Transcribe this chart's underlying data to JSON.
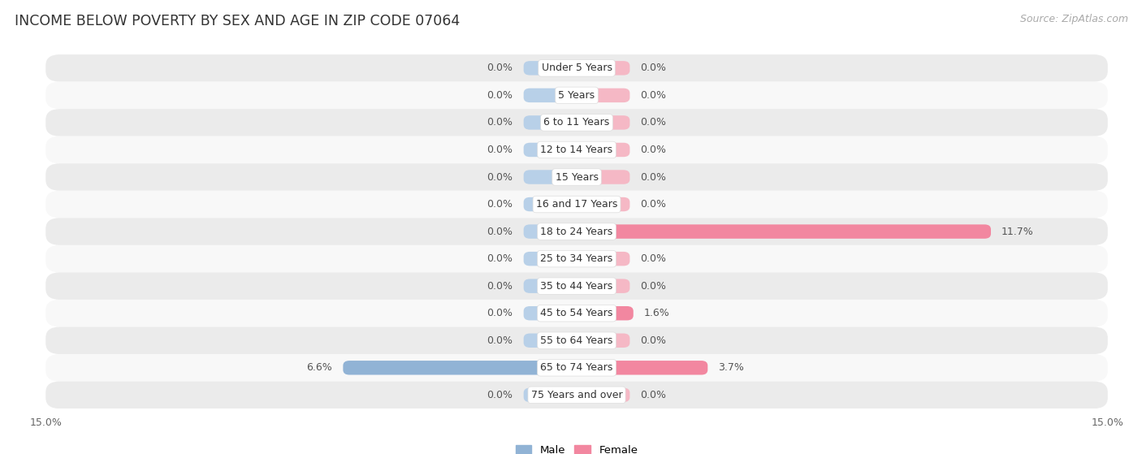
{
  "title": "INCOME BELOW POVERTY BY SEX AND AGE IN ZIP CODE 07064",
  "source": "Source: ZipAtlas.com",
  "categories": [
    "Under 5 Years",
    "5 Years",
    "6 to 11 Years",
    "12 to 14 Years",
    "15 Years",
    "16 and 17 Years",
    "18 to 24 Years",
    "25 to 34 Years",
    "35 to 44 Years",
    "45 to 54 Years",
    "55 to 64 Years",
    "65 to 74 Years",
    "75 Years and over"
  ],
  "male": [
    0.0,
    0.0,
    0.0,
    0.0,
    0.0,
    0.0,
    0.0,
    0.0,
    0.0,
    0.0,
    0.0,
    6.6,
    0.0
  ],
  "female": [
    0.0,
    0.0,
    0.0,
    0.0,
    0.0,
    0.0,
    11.7,
    0.0,
    0.0,
    1.6,
    0.0,
    3.7,
    0.0
  ],
  "male_color": "#91b3d5",
  "female_color": "#f287a0",
  "male_color_light": "#b8d0e8",
  "female_color_light": "#f5b8c5",
  "background_row_light": "#ebebeb",
  "background_row_white": "#f8f8f8",
  "stub_value": 1.5,
  "xlim": 15.0,
  "bar_height": 0.52,
  "title_fontsize": 12.5,
  "label_fontsize": 9,
  "tick_fontsize": 9,
  "source_fontsize": 9
}
